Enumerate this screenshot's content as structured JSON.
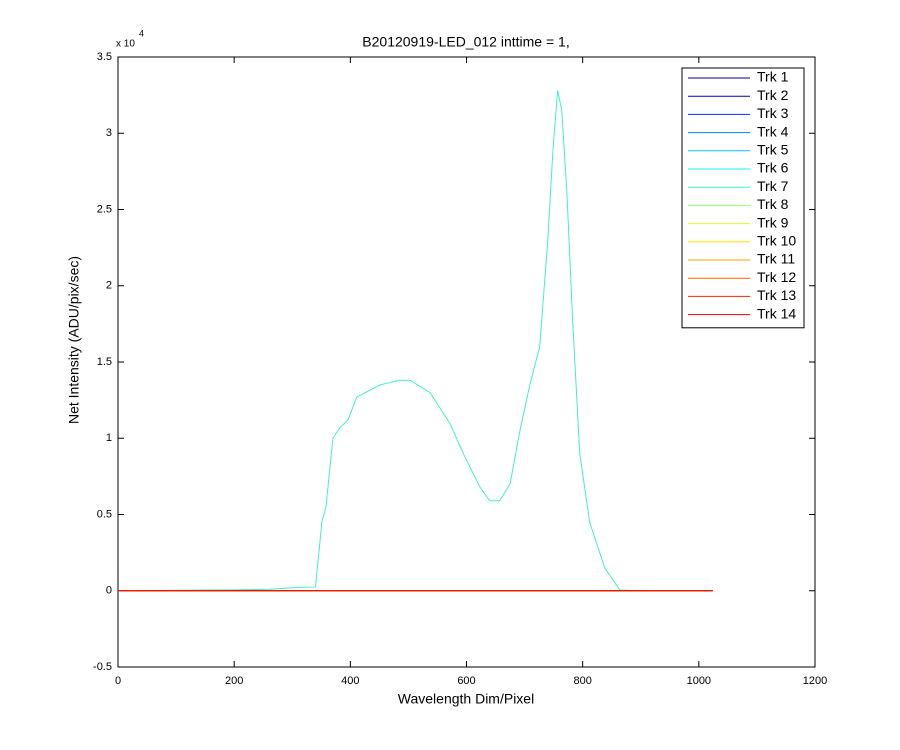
{
  "chart_data": {
    "type": "line",
    "title": "B20120919-LED_012 inttime = 1,",
    "xlabel": "Wavelength Dim/Pixel",
    "ylabel": "Net Intensity (ADU/pix/sec)",
    "y_exponent_base": "x 10",
    "y_exponent": "4",
    "xlim": [
      0,
      1200
    ],
    "xticks": [
      0,
      200,
      400,
      600,
      800,
      1000,
      1200
    ],
    "ylim": [
      -5000,
      35000
    ],
    "yticks": [
      {
        "value": -5000,
        "label": "-0.5"
      },
      0,
      {
        "value": 5000,
        "label": "0.5"
      },
      {
        "value": 10000,
        "label": "1"
      },
      {
        "value": 15000,
        "label": "1.5"
      },
      {
        "value": 20000,
        "label": "2"
      },
      {
        "value": 25000,
        "label": "2.5"
      },
      {
        "value": 30000,
        "label": "3"
      },
      {
        "value": 35000,
        "label": "3.5"
      }
    ],
    "grid": false,
    "legend": "top-right",
    "series": [
      {
        "name": "Trk 1",
        "color": "#000080",
        "x": [
          0,
          1024
        ],
        "values": [
          0,
          0
        ]
      },
      {
        "name": "Trk 2",
        "color": "#0000c0",
        "x": [
          0,
          1024
        ],
        "values": [
          0,
          0
        ]
      },
      {
        "name": "Trk 3",
        "color": "#0030ff",
        "x": [
          0,
          1024
        ],
        "values": [
          0,
          0
        ]
      },
      {
        "name": "Trk 4",
        "color": "#0080ff",
        "x": [
          0,
          1024
        ],
        "values": [
          0,
          0
        ]
      },
      {
        "name": "Trk 5",
        "color": "#00c8ff",
        "x": [
          0,
          1024
        ],
        "values": [
          0,
          0
        ]
      },
      {
        "name": "Trk 6",
        "color": "#10f8f0",
        "x": [
          0,
          1024
        ],
        "values": [
          0,
          0
        ]
      },
      {
        "name": "Trk 7",
        "color": "#40f0c8",
        "x": [
          0,
          100,
          200,
          260,
          300,
          340,
          351,
          358,
          370,
          382,
          396,
          411,
          451,
          485,
          503,
          537,
          571,
          597,
          623,
          640,
          657,
          675,
          692,
          709,
          726,
          740,
          749,
          757,
          764,
          773,
          783,
          795,
          812,
          838,
          864,
          898,
          1022
        ],
        "values": [
          0,
          30,
          60,
          100,
          200,
          250,
          4500,
          5500,
          10000,
          10700,
          11200,
          12700,
          13500,
          13800,
          13800,
          13000,
          11000,
          8800,
          6800,
          5900,
          5900,
          7000,
          10500,
          13500,
          16000,
          23000,
          29000,
          32800,
          31500,
          26000,
          17500,
          9000,
          4500,
          1500,
          50,
          0,
          0
        ]
      },
      {
        "name": "Trk 8",
        "color": "#90ff70",
        "x": [
          0,
          1024
        ],
        "values": [
          0,
          0
        ]
      },
      {
        "name": "Trk 9",
        "color": "#d0ff30",
        "x": [
          0,
          1024
        ],
        "values": [
          0,
          0
        ]
      },
      {
        "name": "Trk 10",
        "color": "#ffe000",
        "x": [
          0,
          1024
        ],
        "values": [
          0,
          0
        ]
      },
      {
        "name": "Trk 11",
        "color": "#ffa000",
        "x": [
          0,
          1024
        ],
        "values": [
          0,
          0
        ]
      },
      {
        "name": "Trk 12",
        "color": "#ff6000",
        "x": [
          0,
          1024
        ],
        "values": [
          0,
          0
        ]
      },
      {
        "name": "Trk 13",
        "color": "#ff2000",
        "x": [
          0,
          1024
        ],
        "values": [
          0,
          0
        ]
      },
      {
        "name": "Trk 14",
        "color": "#e00000",
        "x": [
          0,
          1024
        ],
        "values": [
          0,
          0
        ]
      }
    ]
  }
}
